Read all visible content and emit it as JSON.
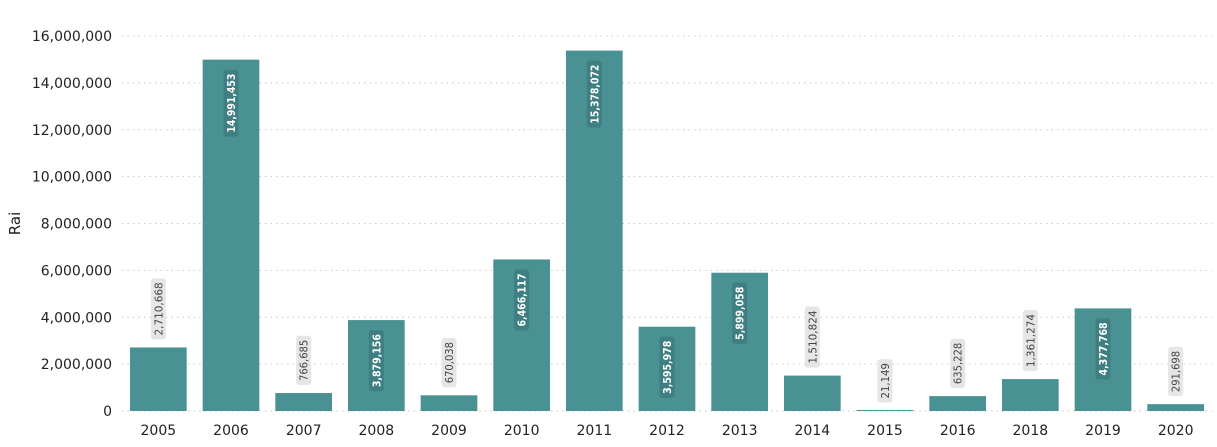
{
  "chart_data": {
    "type": "bar",
    "title": "",
    "xlabel": "",
    "ylabel": "Rai",
    "categories": [
      "2005",
      "2006",
      "2007",
      "2008",
      "2009",
      "2010",
      "2011",
      "2012",
      "2013",
      "2014",
      "2015",
      "2016",
      "2018",
      "2019",
      "2020"
    ],
    "values": [
      2710668,
      14991453,
      766685,
      3879156,
      670038,
      6466117,
      15378072,
      3595978,
      5899058,
      1510824,
      21149,
      635228,
      1361274,
      4377768,
      291698
    ],
    "data_labels": [
      "2,710,668",
      "14,991,453",
      "766,685",
      "3,879,156",
      "670,038",
      "6,466,117",
      "15,378,072",
      "3,595,978",
      "5,899,058",
      "1,510,824",
      "21,149",
      "635,228",
      "1,361,274",
      "4,377,768",
      "291,698"
    ],
    "y_ticks": [
      0,
      2000000,
      4000000,
      6000000,
      8000000,
      10000000,
      12000000,
      14000000,
      16000000
    ],
    "y_tick_labels": [
      "0",
      "2,000,000",
      "4,000,000",
      "6,000,000",
      "8,000,000",
      "10,000,000",
      "12,000,000",
      "14,000,000",
      "16,000,000"
    ],
    "ylim": [
      0,
      16000000
    ],
    "grid": true,
    "legend": "none",
    "colors": {
      "bar": "#4a9194",
      "label_bg_outside": "#e6e6e6",
      "label_text_outside": "#444444",
      "label_bg_inside": "#3f7f82",
      "label_text_inside": "#ffffff"
    }
  }
}
